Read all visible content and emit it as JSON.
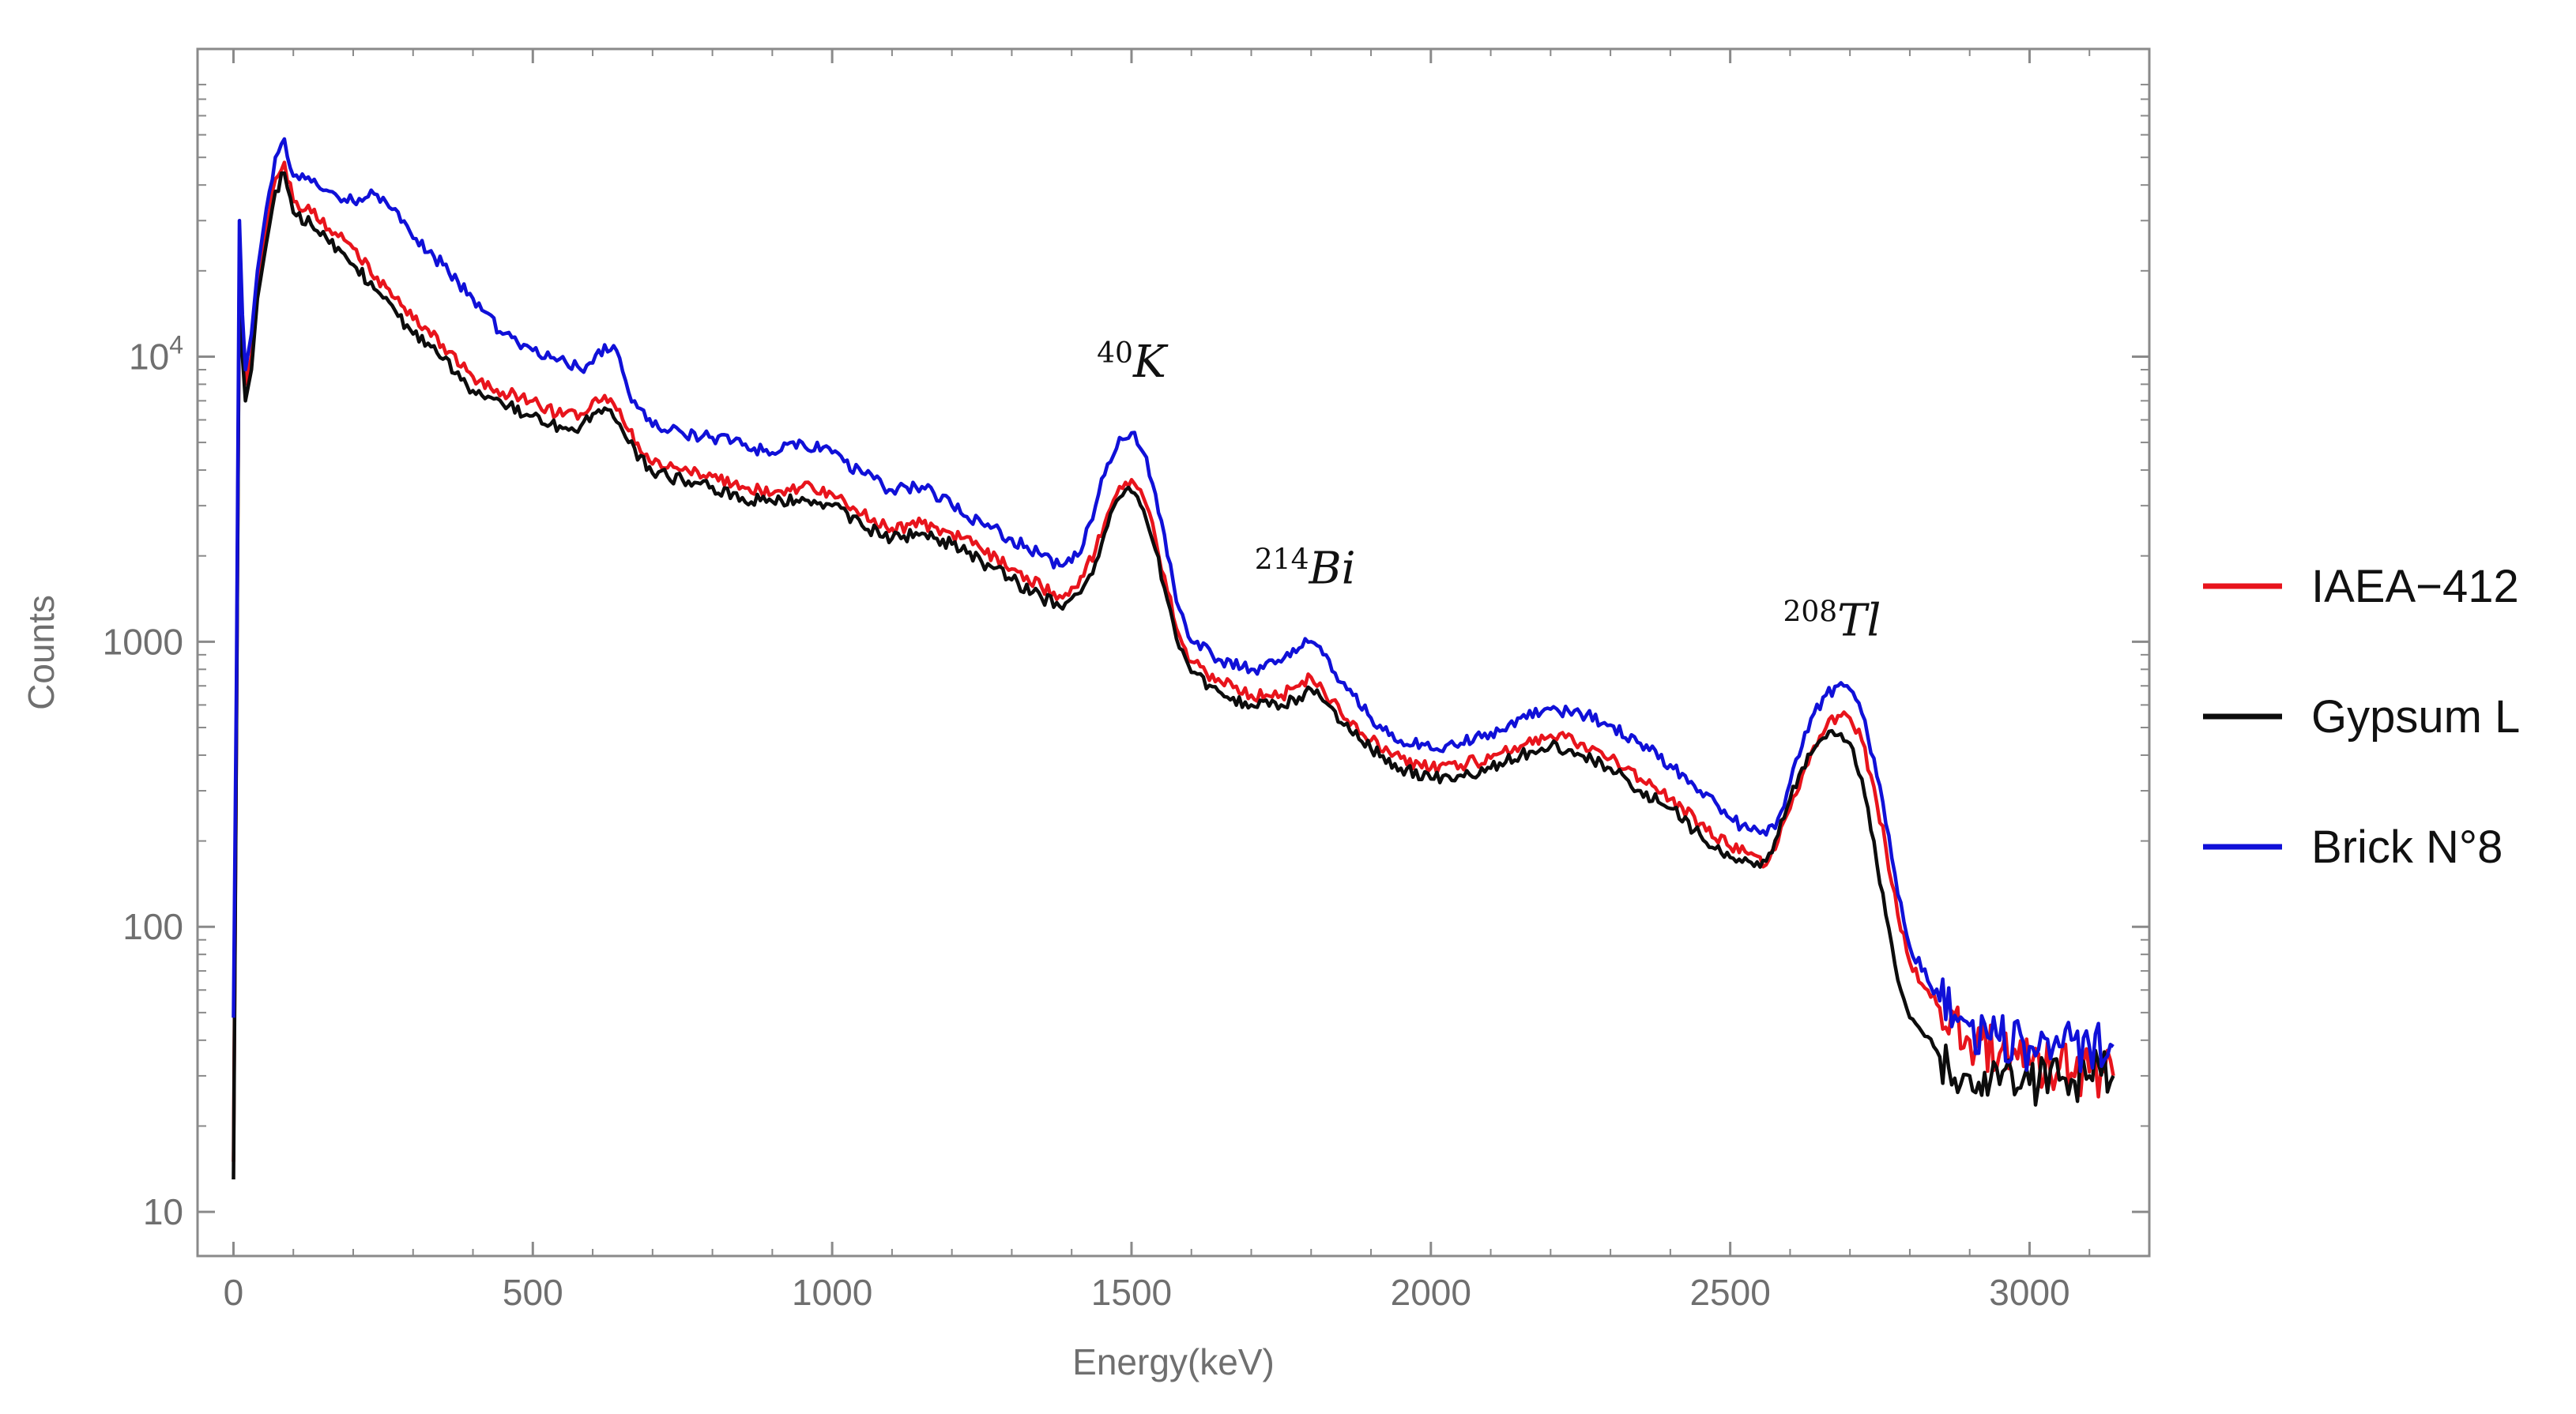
{
  "chart_data": {
    "type": "line",
    "title": "",
    "xlabel": "Energy(keV)",
    "ylabel": "Counts",
    "yscale": "log",
    "xlim": [
      -60,
      3200
    ],
    "ylim": [
      7,
      120000
    ],
    "x_ticks": [
      0,
      500,
      1000,
      1500,
      2000,
      2500,
      3000
    ],
    "x_tick_labels": [
      "0",
      "500",
      "1000",
      "1500",
      "2000",
      "2500",
      "3000"
    ],
    "y_ticks": [
      10,
      100,
      1000,
      10000
    ],
    "y_tick_labels": [
      {
        "base": "10",
        "sup": ""
      },
      {
        "base": "100",
        "sup": ""
      },
      {
        "base": "1000",
        "sup": ""
      },
      {
        "base": "10",
        "sup": "4"
      }
    ],
    "grid": false,
    "legend_position": "right",
    "annotations": [
      {
        "sup": "40",
        "label": "K",
        "x": 1500,
        "y": 8500
      },
      {
        "sup": "214",
        "label": "Bi",
        "x": 1790,
        "y": 1600
      },
      {
        "sup": "208",
        "label": "Tl",
        "x": 2670,
        "y": 1050
      }
    ],
    "series": [
      {
        "name": "IAEA−412",
        "color": "#e8141c",
        "x": [
          0,
          5,
          10,
          15,
          20,
          30,
          40,
          55,
          70,
          85,
          100,
          130,
          160,
          200,
          240,
          270,
          300,
          350,
          400,
          450,
          500,
          550,
          580,
          600,
          620,
          640,
          660,
          700,
          750,
          800,
          850,
          900,
          950,
          1000,
          1050,
          1100,
          1150,
          1200,
          1250,
          1300,
          1350,
          1380,
          1400,
          1420,
          1440,
          1460,
          1480,
          1500,
          1520,
          1540,
          1560,
          1580,
          1600,
          1650,
          1700,
          1750,
          1780,
          1800,
          1820,
          1850,
          1900,
          1950,
          2000,
          2050,
          2100,
          2150,
          2200,
          2250,
          2300,
          2350,
          2400,
          2450,
          2500,
          2530,
          2560,
          2580,
          2600,
          2620,
          2640,
          2660,
          2680,
          2700,
          2720,
          2740,
          2760,
          2780,
          2800,
          2850,
          2900,
          2950,
          3000,
          3050,
          3100,
          3140
        ],
        "values": [
          15,
          500,
          22000,
          11000,
          8000,
          10000,
          18000,
          28000,
          42000,
          48000,
          35000,
          32000,
          28000,
          24000,
          19000,
          16000,
          13500,
          11000,
          8500,
          7500,
          7000,
          6200,
          6300,
          7000,
          7300,
          6500,
          5500,
          4200,
          4000,
          3800,
          3500,
          3300,
          3500,
          3300,
          2800,
          2500,
          2600,
          2400,
          2100,
          1800,
          1550,
          1450,
          1550,
          1700,
          2100,
          2800,
          3500,
          3700,
          3200,
          2300,
          1500,
          1050,
          850,
          720,
          650,
          650,
          700,
          750,
          680,
          560,
          450,
          390,
          360,
          370,
          390,
          430,
          470,
          440,
          390,
          330,
          280,
          230,
          190,
          180,
          165,
          200,
          260,
          340,
          430,
          500,
          550,
          540,
          450,
          310,
          190,
          110,
          75,
          52,
          40,
          36,
          33,
          32,
          31,
          30
        ]
      },
      {
        "name": "Gypsum L",
        "color": "#0c0c0c",
        "x": [
          0,
          5,
          10,
          15,
          20,
          30,
          40,
          55,
          70,
          85,
          100,
          130,
          160,
          200,
          240,
          270,
          300,
          350,
          400,
          450,
          500,
          550,
          580,
          600,
          620,
          640,
          660,
          700,
          750,
          800,
          850,
          900,
          950,
          1000,
          1050,
          1100,
          1150,
          1200,
          1250,
          1300,
          1350,
          1380,
          1400,
          1420,
          1440,
          1460,
          1480,
          1500,
          1520,
          1540,
          1560,
          1580,
          1600,
          1650,
          1700,
          1750,
          1780,
          1800,
          1820,
          1850,
          1900,
          1950,
          2000,
          2050,
          2100,
          2150,
          2200,
          2250,
          2300,
          2350,
          2400,
          2450,
          2500,
          2530,
          2560,
          2580,
          2600,
          2620,
          2640,
          2660,
          2680,
          2700,
          2720,
          2740,
          2760,
          2780,
          2800,
          2850,
          2900,
          2950,
          3000,
          3050,
          3100,
          3140
        ],
        "values": [
          13,
          480,
          21000,
          10000,
          7000,
          9000,
          16000,
          25000,
          38000,
          44000,
          32000,
          29000,
          25000,
          21000,
          17000,
          14500,
          12000,
          9800,
          7600,
          6800,
          6200,
          5600,
          5700,
          6300,
          6600,
          5900,
          5000,
          3900,
          3700,
          3500,
          3200,
          3100,
          3200,
          3000,
          2550,
          2300,
          2400,
          2200,
          1900,
          1650,
          1420,
          1330,
          1420,
          1560,
          1900,
          2550,
          3200,
          3350,
          2900,
          2100,
          1400,
          950,
          780,
          660,
          600,
          600,
          640,
          680,
          620,
          520,
          420,
          360,
          330,
          340,
          360,
          400,
          430,
          400,
          360,
          300,
          260,
          210,
          175,
          170,
          170,
          210,
          280,
          360,
          420,
          460,
          470,
          440,
          330,
          200,
          110,
          65,
          48,
          35,
          30,
          28,
          28,
          29,
          30,
          30
        ]
      },
      {
        "name": "Brick N°8",
        "color": "#1010d8",
        "x": [
          0,
          5,
          10,
          15,
          20,
          30,
          40,
          55,
          70,
          85,
          100,
          130,
          160,
          200,
          240,
          270,
          300,
          350,
          400,
          450,
          500,
          550,
          580,
          600,
          620,
          640,
          660,
          700,
          750,
          800,
          850,
          900,
          950,
          1000,
          1050,
          1100,
          1150,
          1200,
          1250,
          1300,
          1350,
          1380,
          1400,
          1420,
          1440,
          1460,
          1480,
          1500,
          1520,
          1540,
          1560,
          1580,
          1600,
          1650,
          1700,
          1750,
          1780,
          1800,
          1820,
          1850,
          1900,
          1950,
          2000,
          2050,
          2100,
          2150,
          2200,
          2250,
          2300,
          2350,
          2400,
          2450,
          2500,
          2530,
          2560,
          2580,
          2600,
          2620,
          2640,
          2660,
          2680,
          2700,
          2720,
          2740,
          2760,
          2780,
          2800,
          2850,
          2900,
          2950,
          3000,
          3050,
          3100,
          3140
        ],
        "values": [
          48,
          700,
          30000,
          14000,
          9000,
          12000,
          20000,
          33000,
          50000,
          58000,
          43000,
          41000,
          38000,
          35000,
          37000,
          33000,
          26000,
          21000,
          16000,
          12000,
          10500,
          10000,
          9000,
          9500,
          11000,
          10500,
          7500,
          5700,
          5400,
          5200,
          4900,
          4600,
          5000,
          4600,
          3900,
          3400,
          3500,
          3000,
          2600,
          2300,
          2000,
          1850,
          1900,
          2200,
          3000,
          4200,
          5200,
          5400,
          4600,
          3300,
          2000,
          1300,
          1000,
          860,
          800,
          850,
          950,
          1000,
          900,
          720,
          540,
          450,
          420,
          440,
          480,
          540,
          580,
          560,
          510,
          440,
          370,
          300,
          240,
          220,
          210,
          240,
          320,
          430,
          560,
          650,
          700,
          680,
          560,
          390,
          230,
          130,
          85,
          55,
          45,
          40,
          38,
          38,
          38,
          38
        ]
      }
    ]
  }
}
